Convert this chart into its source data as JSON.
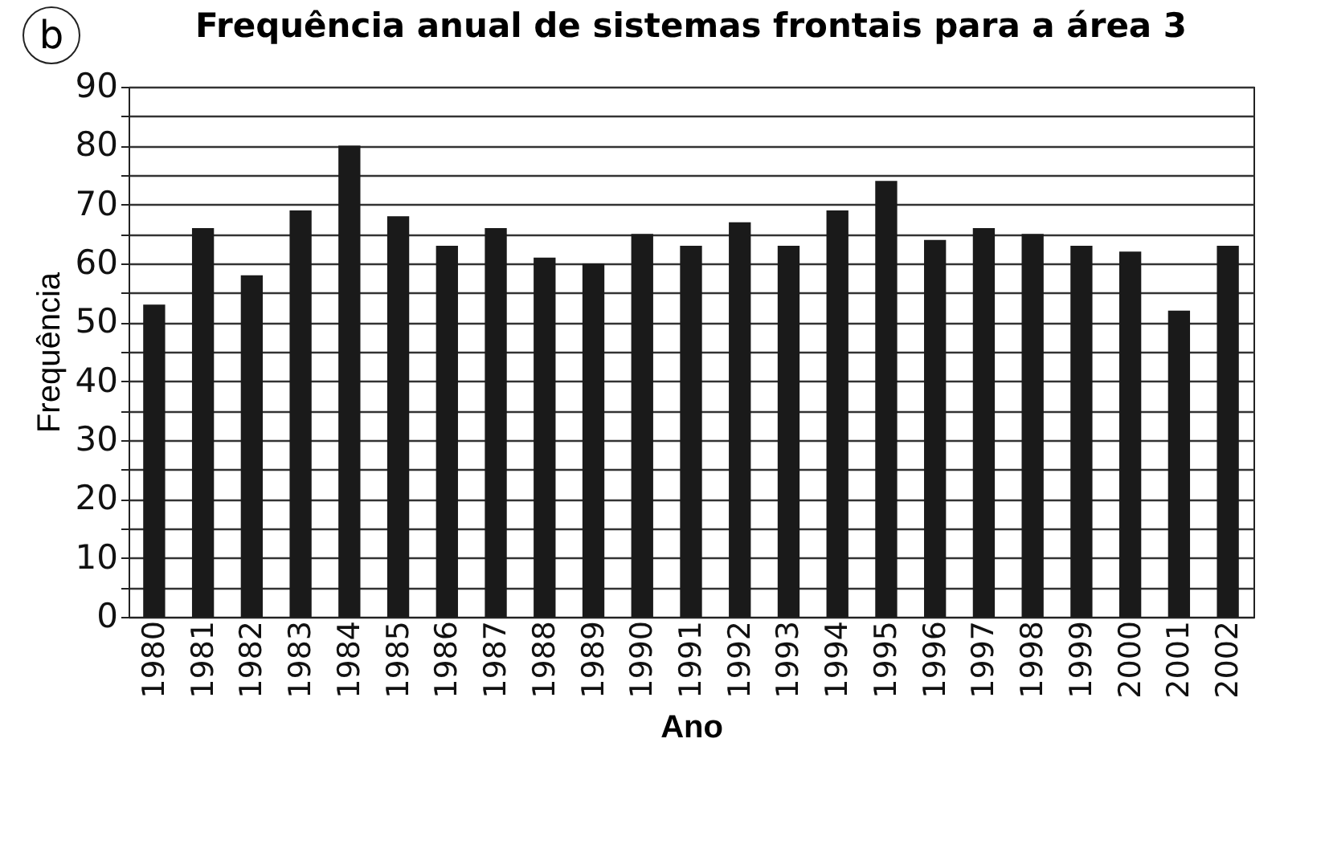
{
  "chart_data": {
    "type": "bar",
    "title": "Frequência anual de sistemas frontais para a área 3",
    "xlabel": "Ano",
    "ylabel": "Frequência",
    "annotations": [
      "b"
    ],
    "categories": [
      "1980",
      "1981",
      "1982",
      "1983",
      "1984",
      "1985",
      "1986",
      "1987",
      "1988",
      "1989",
      "1990",
      "1991",
      "1992",
      "1993",
      "1994",
      "1995",
      "1996",
      "1997",
      "1998",
      "1999",
      "2000",
      "2001",
      "2002"
    ],
    "values": [
      53,
      66,
      58,
      69,
      80,
      68,
      63,
      66,
      61,
      60,
      65,
      63,
      67,
      63,
      69,
      74,
      64,
      66,
      65,
      63,
      62,
      52,
      63
    ],
    "color": "#1a1a1a",
    "ylim": [
      0,
      90
    ],
    "yticks": [
      0,
      {
        "value": 5,
        "label": null
      },
      10,
      {
        "value": 15,
        "label": null
      },
      20,
      {
        "value": 25,
        "label": null
      },
      30,
      {
        "value": 35,
        "label": null
      },
      40,
      {
        "value": 45,
        "label": null
      },
      50,
      {
        "value": 55,
        "label": null
      },
      60,
      {
        "value": 65,
        "label": null
      },
      70,
      {
        "value": 75,
        "label": null
      },
      80,
      {
        "value": 85,
        "label": null
      },
      90
    ],
    "grid": "y"
  }
}
